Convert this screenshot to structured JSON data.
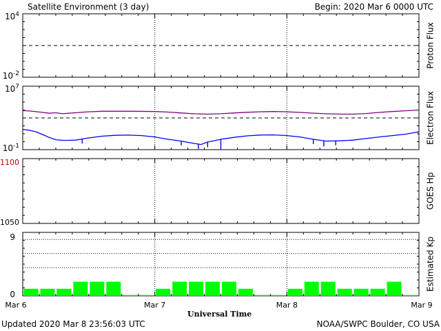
{
  "header": {
    "title": "Satellite Environment (3 day)",
    "begin": "Begin:  2020 Mar 6 0000 UTC"
  },
  "footer": {
    "updated": "Updated 2020 Mar  8 23:56:03 UTC",
    "source": "NOAA/SWPC Boulder, CO USA"
  },
  "x_axis": {
    "label": "Universal Time",
    "ticks": [
      "Mar 6",
      "Mar 7",
      "Mar 8",
      "Mar 9"
    ]
  },
  "colors": {
    "electron_upper": "#800080",
    "electron_lower": "#0000ff",
    "kp_bar": "#00ff00",
    "goes_tick": "#cc0000",
    "threshold": "#000000"
  },
  "chart_data": [
    {
      "type": "line",
      "panel": "proton",
      "ylabel": "Proton Flux",
      "yscale": "log",
      "ylim": [
        0.01,
        10000
      ],
      "yticks": [
        {
          "base": "10",
          "exp": "4"
        },
        {
          "base": "10",
          "exp": "-2"
        }
      ],
      "threshold": 10,
      "series": []
    },
    {
      "type": "line",
      "panel": "electron",
      "ylabel": "Electron Flux",
      "yscale": "log",
      "ylim": [
        0.1,
        10000000
      ],
      "yticks": [
        {
          "base": "10",
          "exp": "7"
        },
        {
          "base": "10",
          "exp": "-1"
        }
      ],
      "threshold": 1000,
      "series": [
        {
          "color": "#800080",
          "points": [
            [
              0,
              8500
            ],
            [
              0.05,
              7500
            ],
            [
              0.1,
              6200
            ],
            [
              0.15,
              5000
            ],
            [
              0.2,
              3900
            ],
            [
              0.25,
              4500
            ],
            [
              0.3,
              3400
            ],
            [
              0.35,
              3900
            ],
            [
              0.4,
              4500
            ],
            [
              0.5,
              6000
            ],
            [
              0.6,
              7000
            ],
            [
              0.8,
              7000
            ],
            [
              1.0,
              6500
            ],
            [
              1.1,
              5500
            ],
            [
              1.2,
              4200
            ],
            [
              1.3,
              3300
            ],
            [
              1.4,
              3000
            ],
            [
              1.5,
              3400
            ],
            [
              1.6,
              4200
            ],
            [
              1.7,
              5200
            ],
            [
              1.8,
              6000
            ],
            [
              1.9,
              6400
            ],
            [
              2.0,
              6000
            ],
            [
              2.1,
              5000
            ],
            [
              2.2,
              4000
            ],
            [
              2.3,
              3300
            ],
            [
              2.4,
              3000
            ],
            [
              2.5,
              3000
            ],
            [
              2.6,
              3600
            ],
            [
              2.7,
              5000
            ],
            [
              2.8,
              6500
            ],
            [
              2.9,
              8000
            ],
            [
              3.0,
              10000
            ]
          ]
        },
        {
          "color": "#0000ff",
          "points": [
            [
              0,
              35
            ],
            [
              0.05,
              28
            ],
            [
              0.1,
              18
            ],
            [
              0.15,
              8
            ],
            [
              0.2,
              3.5
            ],
            [
              0.25,
              1.8
            ],
            [
              0.3,
              1.5
            ],
            [
              0.35,
              1.5
            ],
            [
              0.4,
              1.6
            ],
            [
              0.5,
              3
            ],
            [
              0.6,
              5
            ],
            [
              0.7,
              6.5
            ],
            [
              0.8,
              6.8
            ],
            [
              0.9,
              6
            ],
            [
              1.0,
              4
            ],
            [
              1.1,
              2
            ],
            [
              1.2,
              1.2
            ],
            [
              1.3,
              0.6
            ],
            [
              1.35,
              0.45
            ],
            [
              1.4,
              0.9
            ],
            [
              1.5,
              2
            ],
            [
              1.6,
              3.5
            ],
            [
              1.7,
              5.5
            ],
            [
              1.8,
              7
            ],
            [
              1.9,
              7.2
            ],
            [
              2.0,
              6
            ],
            [
              2.1,
              4
            ],
            [
              2.2,
              2
            ],
            [
              2.3,
              1.2
            ],
            [
              2.4,
              1.3
            ],
            [
              2.5,
              1.6
            ],
            [
              2.6,
              2.5
            ],
            [
              2.7,
              4
            ],
            [
              2.8,
              6
            ],
            [
              2.9,
              9
            ],
            [
              3.0,
              18
            ]
          ]
        }
      ]
    },
    {
      "type": "line",
      "panel": "goes_hp",
      "ylabel": "GOES Hp",
      "ylim": [
        1050,
        1100
      ],
      "yticks": [
        "1100",
        "1050"
      ],
      "series": []
    },
    {
      "type": "bar",
      "panel": "kp",
      "ylabel": "Estimated Kp",
      "ylim": [
        0,
        9
      ],
      "yticks": [
        "9",
        "0"
      ],
      "gridlines": [
        4,
        6,
        8
      ],
      "bar_width_days": 0.125,
      "values": [
        1,
        1,
        1,
        2,
        2,
        2,
        0,
        0,
        1,
        2,
        2,
        2,
        2,
        1,
        0,
        0,
        1,
        2,
        2,
        1,
        1,
        1,
        2,
        0
      ]
    }
  ]
}
